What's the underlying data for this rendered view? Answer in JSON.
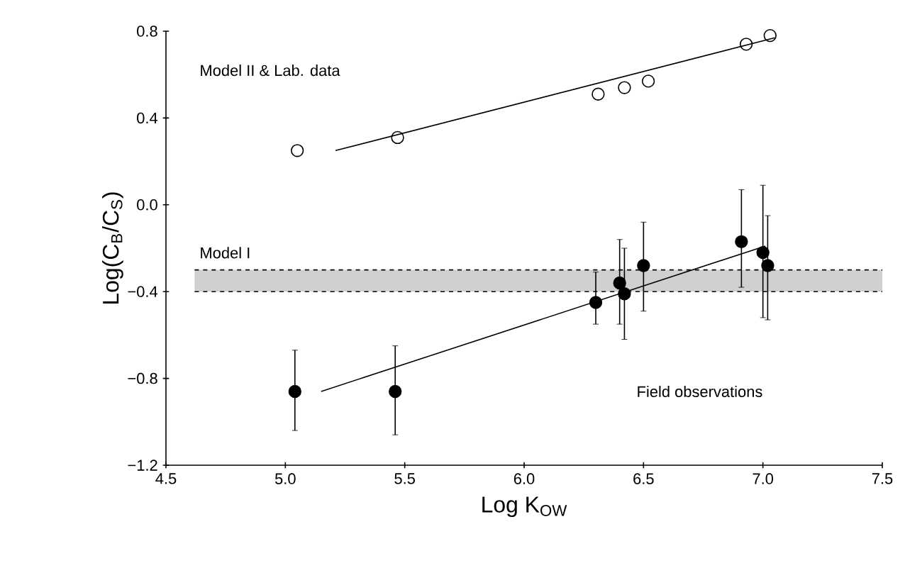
{
  "chart_data": {
    "type": "scatter",
    "xlabel": "Log K$_{OW}$",
    "ylabel": "Log(C$_{B}$/C$_{S}$)",
    "xlim": [
      4.5,
      7.5
    ],
    "ylim": [
      -1.2,
      0.8
    ],
    "xticks": [
      {
        "value": 4.5,
        "label": "4.5"
      },
      {
        "value": 5,
        "label": "5.0"
      },
      {
        "value": 5.5,
        "label": "5.5"
      },
      {
        "value": 6,
        "label": "6.0"
      },
      {
        "value": 6.5,
        "label": "6.5"
      },
      {
        "value": 7,
        "label": "7.0"
      },
      {
        "value": 7.5,
        "label": "7.5"
      }
    ],
    "yticks": [
      {
        "value": -1.2,
        "label": "−1.2"
      },
      {
        "value": -0.8,
        "label": "−0.8"
      },
      {
        "value": -0.4,
        "label": "−0.4"
      },
      {
        "value": 0,
        "label": "0.0"
      },
      {
        "value": 0.4,
        "label": "0.4"
      },
      {
        "value": 0.8,
        "label": "0.8"
      }
    ],
    "series": [
      {
        "marker": "circle",
        "color": "#000000",
        "x": [
          5.05,
          5.47,
          6.31,
          6.42,
          6.52,
          6.93,
          7.03
        ],
        "values": [
          0.25,
          0.31,
          0.51,
          0.54,
          0.57,
          0.74,
          0.78
        ]
      },
      {
        "marker": "circle",
        "color": "#000000",
        "x": [
          5.04,
          5.46,
          6.3,
          6.4,
          6.42,
          6.5,
          6.91,
          7.0,
          7.02
        ],
        "values": [
          -0.86,
          -0.86,
          -0.45,
          -0.36,
          -0.41,
          -0.28,
          -0.17,
          -0.22,
          -0.28
        ],
        "errors": [
          [
            -1.04,
            -0.67
          ],
          [
            -1.06,
            -0.65
          ],
          [
            -0.55,
            -0.31
          ],
          [
            -0.55,
            -0.16
          ],
          [
            -0.62,
            -0.2
          ],
          [
            -0.49,
            -0.08
          ],
          [
            -0.38,
            0.07
          ],
          [
            -0.52,
            0.09
          ],
          [
            -0.53,
            -0.05
          ]
        ]
      },
      {
        "type": "line",
        "marker": "none",
        "color": "#000000",
        "x": [
          5.21,
          7.05
        ],
        "values": [
          0.25,
          0.77
        ]
      },
      {
        "type": "line",
        "marker": "none",
        "color": "#000000",
        "x": [
          5.15,
          7.01
        ],
        "values": [
          -0.86,
          -0.19
        ]
      }
    ],
    "bands": [
      {
        "axis": "y",
        "from": -0.4,
        "to": -0.3,
        "label": "Model I",
        "color": "#d0d0d0"
      }
    ],
    "ref_lines": [
      {
        "axis": "y",
        "value": -0.3,
        "line_style": "dashed",
        "color": "#000000"
      },
      {
        "axis": "y",
        "value": -0.4,
        "line_style": "dashed",
        "color": "#000000"
      }
    ],
    "annotations": [
      "Model II & Lab. data",
      "Field observations"
    ]
  }
}
